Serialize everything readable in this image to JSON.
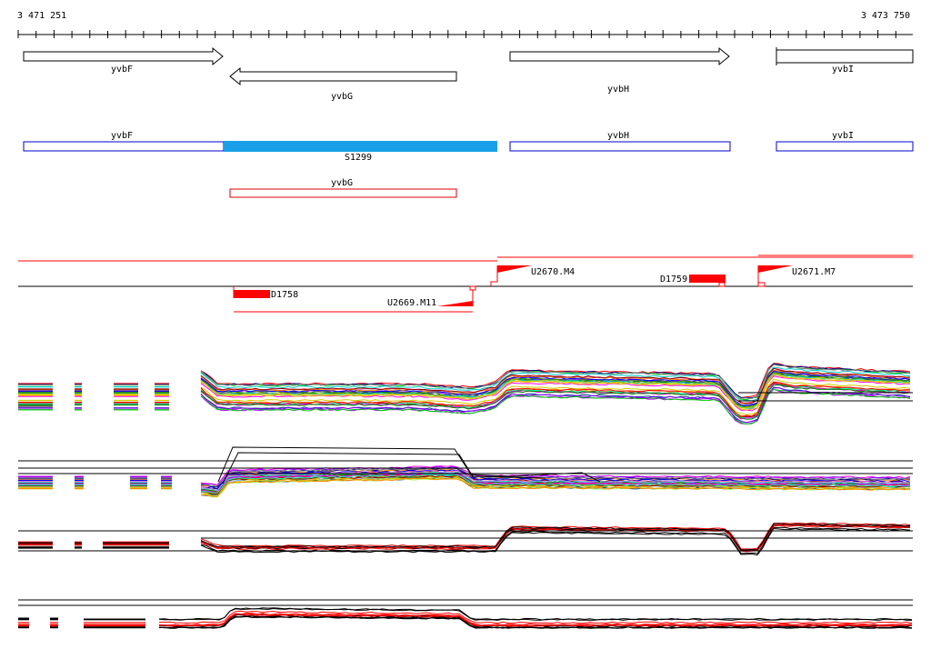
{
  "ruler": {
    "start_label": "3 471 251",
    "end_label": "3 473 750",
    "start": 3471251,
    "end": 3473750
  },
  "genes": [
    {
      "name": "yvbF",
      "strand": "+"
    },
    {
      "name": "yvbG",
      "strand": "-"
    },
    {
      "name": "yvbH",
      "strand": "+"
    },
    {
      "name": "yvbI",
      "strand": "+"
    }
  ],
  "annotation_track": {
    "forward": [
      {
        "label": "yvbF"
      },
      {
        "label": "yvbH"
      },
      {
        "label": "yvbI"
      }
    ],
    "highlight": {
      "label": "S1299",
      "color": "#1aa0e8"
    },
    "reverse": [
      {
        "label": "yvbG"
      }
    ]
  },
  "transcription": {
    "downregulated": [
      {
        "label": "D1758"
      },
      {
        "label": "D1759"
      }
    ],
    "upregulated": [
      {
        "label": "U2669.M11"
      },
      {
        "label": "U2670.M4"
      },
      {
        "label": "U2671.M7"
      }
    ]
  },
  "colors": {
    "gene_outline": "#000000",
    "forward_box": "#0000cc",
    "reverse_box": "#dd0000",
    "highlight": "#1aa0e8",
    "segment": "#ff0000"
  }
}
